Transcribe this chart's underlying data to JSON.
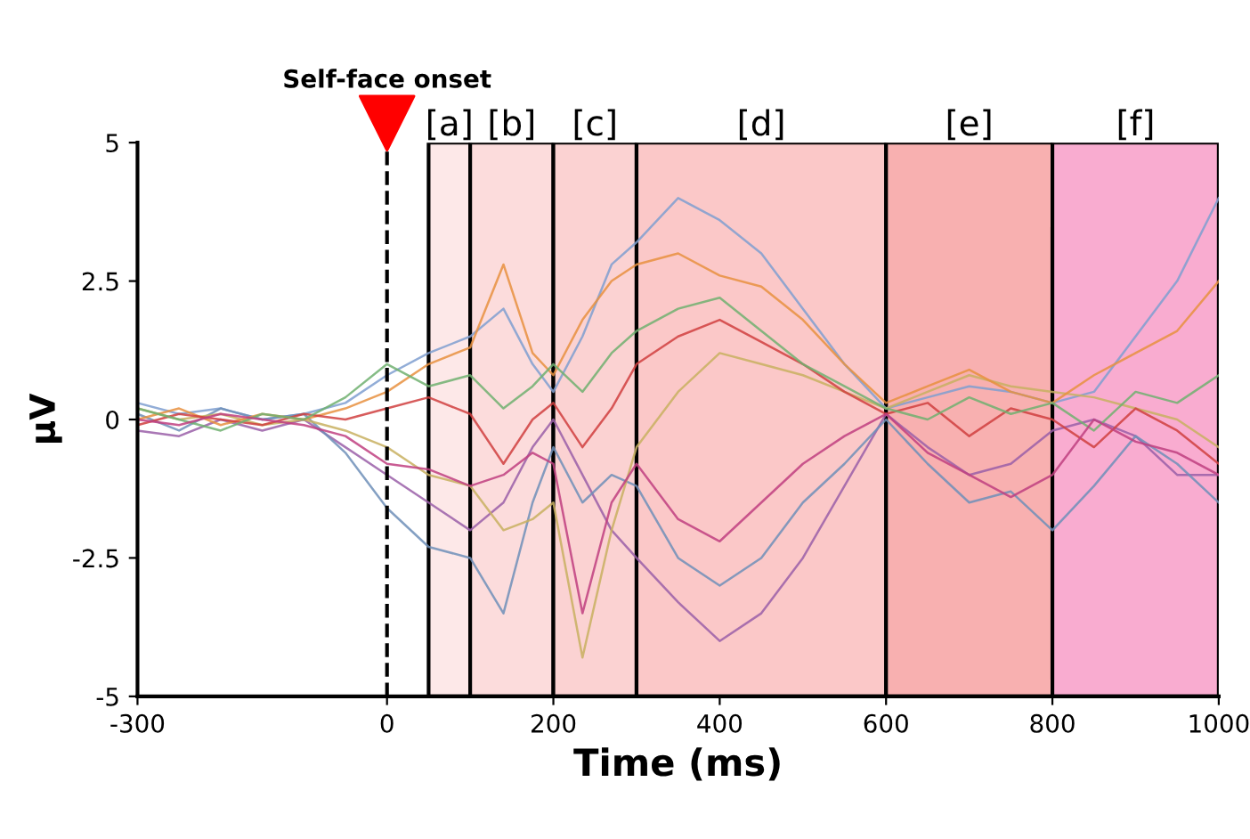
{
  "chart_data": {
    "type": "line",
    "xlabel": "Time (ms)",
    "ylabel": "μV",
    "x": [
      -300,
      -250,
      -200,
      -150,
      -100,
      -50,
      0,
      50,
      100,
      140,
      175,
      200,
      235,
      270,
      300,
      350,
      400,
      450,
      500,
      550,
      600,
      650,
      700,
      750,
      800,
      850,
      900,
      950,
      1000
    ],
    "xlim": [
      -300,
      1000
    ],
    "xticks": [
      -300,
      0,
      200,
      400,
      600,
      800,
      1000
    ],
    "ylim": [
      -5,
      5
    ],
    "yticks": [
      -5,
      -2.5,
      0,
      2.5,
      5
    ],
    "grid": false,
    "legend": false,
    "marker": "none",
    "line_style": "solid",
    "series": [
      {
        "color": "#7f9fd0",
        "values": [
          0.3,
          0.1,
          0.2,
          0,
          0.1,
          0.3,
          0.8,
          1.2,
          1.5,
          2.0,
          1.0,
          0.5,
          1.5,
          2.8,
          3.2,
          4.0,
          3.6,
          3.0,
          2.0,
          1.0,
          0.2,
          0.4,
          0.6,
          0.5,
          0.3,
          0.5,
          1.5,
          2.5,
          4.0
        ]
      },
      {
        "color": "#9a5fa8",
        "values": [
          -0.2,
          -0.3,
          0,
          -0.2,
          0,
          -0.5,
          -1.0,
          -1.5,
          -2.0,
          -1.5,
          -0.5,
          0,
          -1.0,
          -2.0,
          -2.5,
          -3.3,
          -4.0,
          -3.5,
          -2.5,
          -1.2,
          0.1,
          -0.5,
          -1.0,
          -0.8,
          -0.2,
          0.0,
          -0.3,
          -1.0,
          -1.0
        ]
      },
      {
        "color": "#6f8fb8",
        "values": [
          0.1,
          -0.2,
          0.2,
          0,
          0.1,
          -0.6,
          -1.6,
          -2.3,
          -2.5,
          -3.5,
          -1.5,
          -0.5,
          -1.5,
          -1.0,
          -1.2,
          -2.5,
          -3.0,
          -2.5,
          -1.5,
          -0.8,
          0,
          -0.8,
          -1.5,
          -1.3,
          -2.0,
          -1.2,
          -0.3,
          -0.8,
          -1.5
        ]
      },
      {
        "color": "#c8b060",
        "values": [
          0.2,
          0,
          0.1,
          -0.1,
          0,
          -0.2,
          -0.5,
          -1.0,
          -1.2,
          -2.0,
          -1.8,
          -1.5,
          -4.3,
          -2.0,
          -0.5,
          0.5,
          1.2,
          1.0,
          0.8,
          0.5,
          0.2,
          0.5,
          0.8,
          0.6,
          0.5,
          0.4,
          0.2,
          0.0,
          -0.5
        ]
      },
      {
        "color": "#e89040",
        "values": [
          0,
          0.2,
          -0.1,
          0.1,
          0,
          0.2,
          0.5,
          1.0,
          1.3,
          2.8,
          1.2,
          0.8,
          1.8,
          2.5,
          2.8,
          3.0,
          2.6,
          2.4,
          1.8,
          1.0,
          0.3,
          0.6,
          0.9,
          0.5,
          0.3,
          0.8,
          1.2,
          1.6,
          2.5
        ]
      },
      {
        "color": "#d04040",
        "values": [
          -0.1,
          0.1,
          0,
          -0.1,
          0.1,
          0,
          0.2,
          0.4,
          0.1,
          -0.8,
          0.0,
          0.3,
          -0.5,
          0.2,
          1.0,
          1.5,
          1.8,
          1.4,
          1.0,
          0.5,
          0.1,
          0.3,
          -0.3,
          0.2,
          0.0,
          -0.5,
          0.2,
          -0.2,
          -0.8
        ]
      },
      {
        "color": "#70b070",
        "values": [
          0.2,
          0.0,
          -0.2,
          0.1,
          0.0,
          0.4,
          1.0,
          0.6,
          0.8,
          0.2,
          0.6,
          1.0,
          0.5,
          1.2,
          1.6,
          2.0,
          2.2,
          1.6,
          1.0,
          0.6,
          0.2,
          0.0,
          0.4,
          0.1,
          0.3,
          -0.2,
          0.5,
          0.3,
          0.8
        ]
      },
      {
        "color": "#c04080",
        "values": [
          0,
          -0.1,
          0.1,
          0,
          -0.1,
          -0.3,
          -0.8,
          -0.9,
          -1.2,
          -1.0,
          -0.6,
          -0.8,
          -3.5,
          -1.5,
          -0.8,
          -1.8,
          -2.2,
          -1.5,
          -0.8,
          -0.3,
          0.1,
          -0.6,
          -1.0,
          -1.4,
          -1.0,
          0.0,
          -0.4,
          -0.6,
          -1.0
        ]
      }
    ],
    "ref_lines": [
      {
        "axis": "x",
        "value": 0,
        "label": "Self-face onset",
        "color": "#000000",
        "line_style": "dashed"
      }
    ],
    "bands": [
      {
        "axis": "x",
        "from": 50,
        "to": 100,
        "label": "[a]",
        "color": "#fde8e8"
      },
      {
        "axis": "x",
        "from": 100,
        "to": 200,
        "label": "[b]",
        "color": "#fcdcdc"
      },
      {
        "axis": "x",
        "from": 200,
        "to": 300,
        "label": "[c]",
        "color": "#fbd2d2"
      },
      {
        "axis": "x",
        "from": 300,
        "to": 600,
        "label": "[d]",
        "color": "#fbc8c8"
      },
      {
        "axis": "x",
        "from": 600,
        "to": 800,
        "label": "[e]",
        "color": "#f8b0b0"
      },
      {
        "axis": "x",
        "from": 800,
        "to": 1000,
        "label": "[f]",
        "color": "#f9acd0"
      }
    ]
  }
}
